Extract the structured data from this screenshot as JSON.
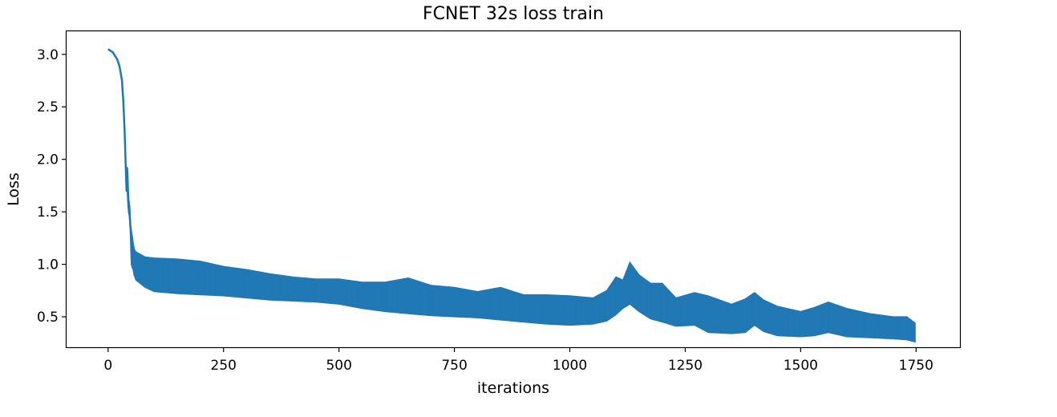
{
  "chart_data": {
    "type": "line",
    "title": "FCNET 32s loss train",
    "xlabel": "iterations",
    "ylabel": "Loss",
    "xlim": [
      -90,
      1845
    ],
    "ylim": [
      0.21,
      3.22
    ],
    "xticks": [
      0,
      250,
      500,
      750,
      1000,
      1250,
      1500,
      1750
    ],
    "yticks": [
      0.5,
      1.0,
      1.5,
      2.0,
      2.5,
      3.0
    ],
    "grid": false,
    "color": "#1f77b4",
    "series": [
      {
        "x": [
          0,
          10,
          20,
          25,
          30,
          33,
          36,
          38,
          40,
          41,
          42,
          43,
          44,
          46,
          48,
          50,
          52,
          54,
          56,
          60,
          80,
          100,
          150,
          200,
          250,
          300,
          350,
          400,
          450,
          500,
          550,
          600,
          650,
          700,
          750,
          800,
          850,
          900,
          950,
          1000,
          1050,
          1080,
          1100,
          1115,
          1130,
          1150,
          1175,
          1200,
          1230,
          1270,
          1300,
          1350,
          1380,
          1400,
          1420,
          1450,
          1500,
          1530,
          1560,
          1600,
          1650,
          1700,
          1730,
          1748
        ],
        "upper": [
          3.05,
          3.02,
          2.95,
          2.88,
          2.75,
          2.55,
          2.25,
          1.95,
          1.7,
          1.92,
          1.85,
          1.7,
          1.62,
          1.55,
          1.38,
          1.3,
          1.25,
          1.18,
          1.15,
          1.12,
          1.07,
          1.06,
          1.05,
          1.03,
          0.98,
          0.95,
          0.91,
          0.88,
          0.86,
          0.86,
          0.83,
          0.83,
          0.87,
          0.8,
          0.78,
          0.74,
          0.78,
          0.71,
          0.71,
          0.7,
          0.68,
          0.75,
          0.88,
          0.85,
          1.02,
          0.9,
          0.82,
          0.82,
          0.68,
          0.73,
          0.7,
          0.62,
          0.67,
          0.73,
          0.66,
          0.6,
          0.55,
          0.59,
          0.64,
          0.58,
          0.53,
          0.5,
          0.5,
          0.44
        ],
        "lower": [
          3.05,
          3.02,
          2.95,
          2.88,
          2.75,
          2.55,
          2.25,
          1.95,
          1.7,
          1.75,
          1.62,
          1.55,
          1.5,
          1.45,
          1.3,
          1.0,
          0.97,
          0.95,
          0.9,
          0.85,
          0.78,
          0.74,
          0.72,
          0.71,
          0.7,
          0.68,
          0.66,
          0.65,
          0.64,
          0.62,
          0.58,
          0.55,
          0.53,
          0.51,
          0.5,
          0.49,
          0.47,
          0.45,
          0.43,
          0.42,
          0.43,
          0.46,
          0.52,
          0.58,
          0.62,
          0.55,
          0.48,
          0.45,
          0.41,
          0.42,
          0.35,
          0.34,
          0.35,
          0.42,
          0.36,
          0.32,
          0.31,
          0.32,
          0.35,
          0.31,
          0.3,
          0.29,
          0.28,
          0.26
        ]
      }
    ]
  }
}
